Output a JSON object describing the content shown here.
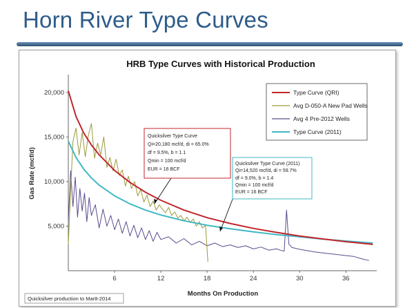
{
  "slide": {
    "title": "Horn River Type Curves",
    "footer_note": "Quicksilver production to Mar8-2014"
  },
  "chart_data": {
    "type": "line",
    "title": "HRB Type Curves with Historical Production",
    "xlabel": "Months On Production",
    "ylabel": "Gas Rate (mcf/d)",
    "xlim": [
      0,
      40
    ],
    "ylim": [
      0,
      22000
    ],
    "x_ticks": [
      6,
      12,
      18,
      24,
      30,
      36
    ],
    "y_ticks": [
      5000,
      10000,
      15000,
      20000
    ],
    "y_tick_labels": [
      "5,000",
      "10,000",
      "15,000",
      "20,000"
    ],
    "legend_position": "top-right",
    "grid": false,
    "series": [
      {
        "name": "Type Curve (QRI)",
        "color": "#c0262c",
        "x": [
          0,
          1,
          2,
          3,
          4,
          6,
          8,
          10,
          12,
          15,
          18,
          21,
          24,
          27,
          30,
          33,
          36,
          39.5
        ],
        "y": [
          20180,
          17300,
          15450,
          14100,
          13000,
          11250,
          9900,
          8800,
          7900,
          6800,
          5950,
          5300,
          4750,
          4300,
          3900,
          3560,
          3250,
          2950
        ]
      },
      {
        "name": "Avg D-050-A New Pad Wells",
        "color": "#9a9a3a",
        "x": [
          0,
          0.3,
          0.6,
          1,
          1.4,
          1.8,
          2.2,
          2.6,
          3,
          3.4,
          3.8,
          4.2,
          4.6,
          5,
          5.4,
          5.8,
          6.2,
          6.6,
          7,
          7.4,
          7.8,
          8.2,
          8.6,
          9,
          9.4,
          9.8,
          10.2,
          10.6,
          11,
          11.4,
          11.8,
          12.2,
          12.6,
          13,
          13.4,
          13.8,
          14.2,
          14.6,
          15,
          15.4,
          15.8,
          16.2,
          16.6,
          17,
          17.4,
          17.8,
          18.1
        ],
        "y": [
          3000,
          9000,
          14500,
          16000,
          13000,
          15500,
          12800,
          15200,
          16500,
          12600,
          14300,
          13000,
          15000,
          11600,
          12700,
          11200,
          12500,
          10700,
          11300,
          9500,
          10600,
          9200,
          10000,
          8400,
          9100,
          7700,
          8500,
          7200,
          7800,
          6800,
          7400,
          6900,
          6500,
          7100,
          6200,
          6600,
          5900,
          6200,
          5600,
          6000,
          5400,
          5800,
          5000,
          5500,
          4800,
          5100,
          1000
        ]
      },
      {
        "name": "Avg 4 Pre-2012 Wells",
        "color": "#5a4a8c",
        "x": [
          0,
          0.3,
          0.6,
          0.9,
          1.2,
          1.5,
          1.8,
          2.1,
          2.4,
          2.7,
          3,
          3.5,
          4,
          4.5,
          5,
          5.5,
          6,
          6.5,
          7,
          7.5,
          8,
          8.5,
          9,
          9.5,
          10,
          10.5,
          11,
          11.5,
          12,
          13,
          14,
          15,
          16,
          17,
          18,
          19,
          20,
          21,
          22,
          23,
          24,
          25,
          26,
          27,
          27.5,
          28,
          28.3,
          28.6,
          29,
          30,
          31,
          32,
          33,
          34,
          35,
          36,
          37,
          38,
          39
        ],
        "y": [
          5500,
          11200,
          7200,
          10500,
          6000,
          9200,
          6700,
          8700,
          5500,
          8200,
          6200,
          7400,
          4800,
          6900,
          5000,
          6200,
          4600,
          5800,
          4200,
          5500,
          3900,
          5100,
          3700,
          4800,
          3500,
          4500,
          3300,
          4300,
          3500,
          3800,
          3100,
          3600,
          2900,
          3300,
          2800,
          3100,
          2700,
          2900,
          2600,
          2800,
          2450,
          2650,
          2300,
          2450,
          2300,
          2200,
          6800,
          3000,
          2600,
          2400,
          2250,
          2100,
          2000,
          1900,
          1800,
          1700,
          1600,
          1350,
          1150
        ]
      },
      {
        "name": "Type Curve (2011)",
        "color": "#3fb8c4",
        "x": [
          0,
          1,
          2,
          3,
          4,
          6,
          8,
          10,
          12,
          15,
          18,
          21,
          24,
          27,
          30,
          33,
          36,
          39.5
        ],
        "y": [
          14520,
          12700,
          11400,
          10400,
          9600,
          8400,
          7500,
          6800,
          6250,
          5600,
          5100,
          4700,
          4350,
          4050,
          3800,
          3550,
          3330,
          3100
        ]
      }
    ],
    "annotations": [
      {
        "id": "qrl",
        "border_color": "#c0262c",
        "lines": [
          "Quicksilver Type Curve",
          "Qi=20,180 mcf/d, di = 65.0%",
          "df = 9.5%, b = 1.1",
          "Qmin = 100 mcf/d",
          "EUR = 16 BCF"
        ]
      },
      {
        "id": "qr2011",
        "border_color": "#3fb8c4",
        "lines": [
          "Quicksilver Type Curve (2011)",
          "Qi=14,520 mcf/d, di = 59.7%",
          "df = 9.0%, b = 1.4",
          "Qmin = 100 mcf/d",
          "EUR = 16 BCF"
        ]
      }
    ]
  }
}
